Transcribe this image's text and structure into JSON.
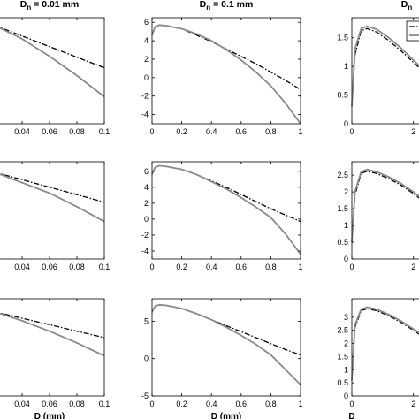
{
  "chart_data": [
    {
      "type": "line",
      "title": "D_n = 0.01 mm",
      "xlabel": "",
      "xlim": [
        0.02,
        0.1
      ],
      "ylim": [
        0.5,
        6
      ],
      "xticks": [
        "0.04",
        "0.06",
        "0.08",
        "0.1"
      ],
      "yticks": [],
      "series": [
        {
          "style": "dashdot",
          "x": [
            0.02,
            0.04,
            0.06,
            0.08,
            0.1
          ],
          "y": [
            5.6,
            5.05,
            4.5,
            3.95,
            3.4
          ]
        },
        {
          "style": "solid",
          "x": [
            0.02,
            0.04,
            0.06,
            0.08,
            0.1
          ],
          "y": [
            5.6,
            4.9,
            4.0,
            3.0,
            1.9
          ]
        }
      ]
    },
    {
      "type": "line",
      "title": "D_n = 0.1 mm",
      "xlabel": "",
      "xlim": [
        0,
        1
      ],
      "ylim": [
        -5,
        6.5
      ],
      "xticks": [
        "0",
        "0.2",
        "0.4",
        "0.6",
        "0.8",
        "1"
      ],
      "yticks": [
        "-4",
        "-2",
        "0",
        "2",
        "4",
        "6"
      ],
      "series": [
        {
          "style": "dashdot",
          "x": [
            0,
            0.02,
            0.05,
            0.1,
            0.2,
            0.3,
            0.4,
            0.5,
            0.6,
            0.7,
            0.8,
            0.9,
            1
          ],
          "y": [
            4.6,
            5.5,
            5.7,
            5.62,
            5.3,
            4.6,
            3.9,
            3.1,
            2.3,
            1.5,
            0.6,
            -0.3,
            -1.3
          ]
        },
        {
          "style": "solid",
          "x": [
            0,
            0.02,
            0.05,
            0.1,
            0.2,
            0.3,
            0.4,
            0.5,
            0.6,
            0.7,
            0.8,
            0.9,
            1
          ],
          "y": [
            4.6,
            5.5,
            5.7,
            5.62,
            5.3,
            4.75,
            4.0,
            3.05,
            1.9,
            0.6,
            -0.9,
            -2.8,
            -5.0
          ]
        }
      ]
    },
    {
      "type": "line",
      "title": "D_n",
      "xlabel": "",
      "xlim": [
        0,
        3.5
      ],
      "ylim": [
        0,
        1.85
      ],
      "xticks": [
        "0",
        "2"
      ],
      "yticks": [
        "0",
        "0.5",
        "1",
        "1.5"
      ],
      "series": [
        {
          "style": "dashdot",
          "x": [
            0,
            0.1,
            0.3,
            0.5,
            0.8,
            1.2,
            1.6,
            2.0,
            2.5,
            3.0,
            3.5
          ],
          "y": [
            0.3,
            1.2,
            1.62,
            1.66,
            1.6,
            1.45,
            1.27,
            1.07,
            0.82,
            0.58,
            0.35
          ]
        },
        {
          "style": "solid",
          "x": [
            0,
            0.1,
            0.3,
            0.5,
            0.8,
            1.2,
            1.6,
            2.0,
            2.5,
            3.0,
            3.5
          ],
          "y": [
            0.3,
            1.3,
            1.66,
            1.7,
            1.65,
            1.5,
            1.32,
            1.11,
            0.85,
            0.6,
            0.37
          ]
        }
      ]
    },
    {
      "type": "line",
      "title": "",
      "xlabel": "",
      "xlim": [
        0.02,
        0.1
      ],
      "ylim": [
        0.5,
        7
      ],
      "xticks": [
        "0.04",
        "0.06",
        "0.08",
        "0.1"
      ],
      "yticks": [],
      "series": [
        {
          "style": "dashdot",
          "x": [
            0.02,
            0.04,
            0.06,
            0.08,
            0.1
          ],
          "y": [
            6.3,
            5.8,
            5.3,
            4.8,
            4.3
          ]
        },
        {
          "style": "solid",
          "x": [
            0.02,
            0.04,
            0.06,
            0.08,
            0.1
          ],
          "y": [
            6.3,
            5.6,
            4.9,
            4.0,
            3.0
          ]
        }
      ]
    },
    {
      "type": "line",
      "title": "",
      "xlabel": "",
      "xlim": [
        0,
        1
      ],
      "ylim": [
        -5,
        7.2
      ],
      "xticks": [
        "0",
        "0.2",
        "0.4",
        "0.6",
        "0.8",
        "1"
      ],
      "yticks": [
        "-4",
        "-2",
        "0",
        "2",
        "4",
        "6"
      ],
      "series": [
        {
          "style": "dashdot",
          "x": [
            0,
            0.02,
            0.05,
            0.1,
            0.2,
            0.3,
            0.4,
            0.5,
            0.6,
            0.7,
            0.8,
            0.9,
            1
          ],
          "y": [
            5.6,
            6.5,
            6.7,
            6.6,
            6.25,
            5.6,
            4.8,
            4.0,
            3.1,
            2.2,
            1.3,
            0.5,
            -0.3
          ]
        },
        {
          "style": "solid",
          "x": [
            0,
            0.02,
            0.05,
            0.1,
            0.2,
            0.3,
            0.4,
            0.5,
            0.6,
            0.7,
            0.8,
            0.9,
            1
          ],
          "y": [
            5.6,
            6.5,
            6.7,
            6.6,
            6.25,
            5.6,
            4.7,
            3.8,
            2.7,
            1.5,
            0.2,
            -1.9,
            -4.4
          ]
        }
      ]
    },
    {
      "type": "line",
      "title": "",
      "xlabel": "",
      "xlim": [
        0,
        3.5
      ],
      "ylim": [
        0,
        2.9
      ],
      "xticks": [
        "0",
        "2"
      ],
      "yticks": [
        "0",
        "0.5",
        "1",
        "1.5",
        "2",
        "2.5"
      ],
      "series": [
        {
          "style": "dashdot",
          "x": [
            0,
            0.1,
            0.3,
            0.5,
            0.8,
            1.2,
            1.6,
            2.0,
            2.5,
            3.0,
            3.5
          ],
          "y": [
            0.5,
            1.9,
            2.55,
            2.62,
            2.55,
            2.4,
            2.2,
            1.95,
            1.6,
            1.25,
            0.9
          ]
        },
        {
          "style": "solid",
          "x": [
            0,
            0.1,
            0.3,
            0.5,
            0.8,
            1.2,
            1.6,
            2.0,
            2.5,
            3.0,
            3.5
          ],
          "y": [
            0.5,
            2.0,
            2.6,
            2.67,
            2.6,
            2.45,
            2.25,
            2.0,
            1.65,
            1.3,
            0.95
          ]
        }
      ]
    },
    {
      "type": "line",
      "title": "",
      "xlabel": "D (mm)",
      "xlim": [
        0.02,
        0.1
      ],
      "ylim": [
        0.5,
        8
      ],
      "xticks": [
        "0.04",
        "0.06",
        "0.08",
        "0.1"
      ],
      "yticks": [],
      "series": [
        {
          "style": "dashdot",
          "x": [
            0.02,
            0.04,
            0.06,
            0.08,
            0.1
          ],
          "y": [
            7.0,
            6.5,
            6.0,
            5.5,
            5.0
          ]
        },
        {
          "style": "solid",
          "x": [
            0.02,
            0.04,
            0.06,
            0.08,
            0.1
          ],
          "y": [
            7.0,
            6.3,
            5.5,
            4.6,
            3.6
          ]
        }
      ]
    },
    {
      "type": "line",
      "title": "",
      "xlabel": "D (mm)",
      "xlim": [
        0,
        1
      ],
      "ylim": [
        -5,
        8
      ],
      "xticks": [
        "0",
        "0.2",
        "0.4",
        "0.6",
        "0.8",
        "1"
      ],
      "yticks": [
        "-5",
        "0",
        "5"
      ],
      "series": [
        {
          "style": "dashdot",
          "x": [
            0,
            0.02,
            0.05,
            0.1,
            0.2,
            0.3,
            0.4,
            0.5,
            0.6,
            0.7,
            0.8,
            0.9,
            1
          ],
          "y": [
            6.2,
            7.0,
            7.2,
            7.1,
            6.7,
            6.0,
            5.2,
            4.4,
            3.6,
            2.8,
            2.0,
            1.2,
            0.5
          ]
        },
        {
          "style": "solid",
          "x": [
            0,
            0.02,
            0.05,
            0.1,
            0.2,
            0.3,
            0.4,
            0.5,
            0.6,
            0.7,
            0.8,
            0.9,
            1
          ],
          "y": [
            6.2,
            7.0,
            7.2,
            7.1,
            6.7,
            6.0,
            5.2,
            4.2,
            3.1,
            1.9,
            0.5,
            -1.5,
            -3.5
          ]
        }
      ]
    },
    {
      "type": "line",
      "title": "",
      "xlabel": "D",
      "xlim": [
        0,
        3.5
      ],
      "ylim": [
        0,
        3.7
      ],
      "xticks": [
        "0",
        "2"
      ],
      "yticks": [
        "0",
        "0.5",
        "1",
        "1.5",
        "2",
        "2.5",
        "3"
      ],
      "series": [
        {
          "style": "dashdot",
          "x": [
            0,
            0.1,
            0.3,
            0.5,
            0.8,
            1.2,
            1.6,
            2.0,
            2.5,
            3.0,
            3.5
          ],
          "y": [
            0.6,
            2.6,
            3.25,
            3.32,
            3.25,
            3.05,
            2.8,
            2.5,
            2.1,
            1.6,
            1.1
          ]
        },
        {
          "style": "solid",
          "x": [
            0,
            0.1,
            0.3,
            0.5,
            0.8,
            1.2,
            1.6,
            2.0,
            2.5,
            3.0,
            3.5
          ],
          "y": [
            0.6,
            2.7,
            3.3,
            3.38,
            3.3,
            3.1,
            2.85,
            2.55,
            2.15,
            1.65,
            1.15
          ]
        }
      ]
    }
  ]
}
